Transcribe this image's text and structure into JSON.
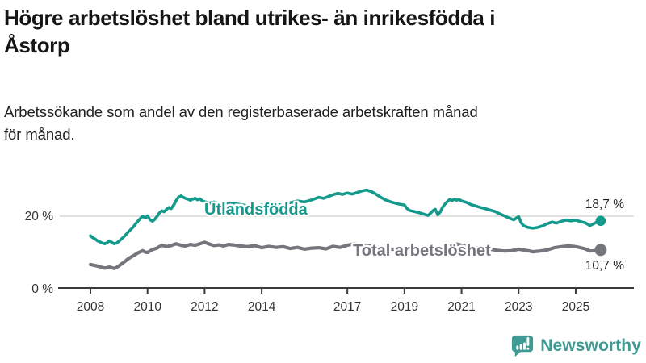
{
  "header": {
    "title_lines": [
      "Högre arbetslöshet bland utrikes- än inrikesfödda i",
      "Åstorp"
    ],
    "subtitle_lines": [
      "Arbetssökande som andel av den registerbaserade arbetskraften månad",
      "för månad."
    ]
  },
  "chart_data": {
    "type": "line",
    "title": "Högre arbetslöshet bland utrikes- än inrikesfödda i Åstorp",
    "subtitle": "Arbetssökande som andel av den registerbaserade arbetskraften månad för månad.",
    "unit": "%",
    "legend_position": "inline-labels",
    "x_axis": {
      "ticks": [
        {
          "label": "2008",
          "value": 2008
        },
        {
          "label": "2010",
          "value": 2010
        },
        {
          "label": "2012",
          "value": 2012
        },
        {
          "label": "2014",
          "value": 2014
        },
        {
          "label": "2017",
          "value": 2017
        },
        {
          "label": "2019",
          "value": 2019
        },
        {
          "label": "2021",
          "value": 2021
        },
        {
          "label": "2023",
          "value": 2023
        },
        {
          "label": "2025",
          "value": 2025
        }
      ],
      "range": [
        2007.6,
        2026.3
      ]
    },
    "y_axis": {
      "ticks": [
        {
          "label": "20 %",
          "value": 20
        },
        {
          "label": "0 %",
          "value": 0
        }
      ],
      "gridlines": [
        20
      ],
      "range": [
        0,
        31
      ]
    },
    "series": [
      {
        "name": "Utlandsfödda",
        "color": "#149a8c",
        "end_value": 18.7,
        "end_value_label": "18,7 %",
        "points": [
          [
            2008.0,
            14.6
          ],
          [
            2008.08,
            14.1
          ],
          [
            2008.17,
            13.7
          ],
          [
            2008.25,
            13.2
          ],
          [
            2008.33,
            12.9
          ],
          [
            2008.42,
            12.6
          ],
          [
            2008.5,
            12.4
          ],
          [
            2008.58,
            12.7
          ],
          [
            2008.67,
            13.2
          ],
          [
            2008.75,
            12.8
          ],
          [
            2008.83,
            12.4
          ],
          [
            2008.92,
            12.6
          ],
          [
            2009.0,
            13.1
          ],
          [
            2009.17,
            14.3
          ],
          [
            2009.33,
            15.7
          ],
          [
            2009.5,
            17.0
          ],
          [
            2009.58,
            17.9
          ],
          [
            2009.67,
            18.7
          ],
          [
            2009.75,
            19.4
          ],
          [
            2009.83,
            20.0
          ],
          [
            2009.92,
            19.5
          ],
          [
            2010.0,
            20.1
          ],
          [
            2010.08,
            19.1
          ],
          [
            2010.17,
            18.6
          ],
          [
            2010.25,
            19.1
          ],
          [
            2010.33,
            19.9
          ],
          [
            2010.42,
            20.9
          ],
          [
            2010.5,
            21.5
          ],
          [
            2010.58,
            21.2
          ],
          [
            2010.67,
            21.9
          ],
          [
            2010.75,
            22.4
          ],
          [
            2010.83,
            22.1
          ],
          [
            2010.92,
            23.1
          ],
          [
            2011.0,
            24.3
          ],
          [
            2011.08,
            25.2
          ],
          [
            2011.17,
            25.6
          ],
          [
            2011.25,
            25.2
          ],
          [
            2011.33,
            24.9
          ],
          [
            2011.42,
            24.7
          ],
          [
            2011.5,
            24.4
          ],
          [
            2011.58,
            24.7
          ],
          [
            2011.67,
            24.9
          ],
          [
            2011.75,
            24.5
          ],
          [
            2011.83,
            24.8
          ],
          [
            2011.92,
            24.2
          ],
          [
            2012.0,
            24.0
          ],
          [
            2012.17,
            23.6
          ],
          [
            2012.33,
            23.9
          ],
          [
            2012.5,
            23.4
          ],
          [
            2012.67,
            23.7
          ],
          [
            2012.83,
            23.3
          ],
          [
            2013.0,
            23.6
          ],
          [
            2013.25,
            23.2
          ],
          [
            2013.5,
            22.9
          ],
          [
            2013.75,
            22.7
          ],
          [
            2014.0,
            23.1
          ],
          [
            2014.25,
            22.8
          ],
          [
            2014.5,
            23.3
          ],
          [
            2014.75,
            23.0
          ],
          [
            2015.0,
            23.7
          ],
          [
            2015.25,
            24.2
          ],
          [
            2015.5,
            23.9
          ],
          [
            2015.75,
            24.5
          ],
          [
            2016.0,
            25.2
          ],
          [
            2016.17,
            24.9
          ],
          [
            2016.33,
            25.4
          ],
          [
            2016.5,
            25.9
          ],
          [
            2016.67,
            26.3
          ],
          [
            2016.83,
            26.0
          ],
          [
            2017.0,
            26.4
          ],
          [
            2017.17,
            26.1
          ],
          [
            2017.33,
            26.5
          ],
          [
            2017.5,
            26.9
          ],
          [
            2017.67,
            27.2
          ],
          [
            2017.83,
            26.8
          ],
          [
            2018.0,
            26.1
          ],
          [
            2018.17,
            25.2
          ],
          [
            2018.33,
            24.5
          ],
          [
            2018.5,
            24.0
          ],
          [
            2018.67,
            23.6
          ],
          [
            2018.83,
            23.3
          ],
          [
            2019.0,
            23.1
          ],
          [
            2019.08,
            22.2
          ],
          [
            2019.17,
            21.6
          ],
          [
            2019.33,
            21.3
          ],
          [
            2019.5,
            21.0
          ],
          [
            2019.67,
            20.6
          ],
          [
            2019.83,
            20.2
          ],
          [
            2020.0,
            21.5
          ],
          [
            2020.08,
            21.9
          ],
          [
            2020.17,
            20.4
          ],
          [
            2020.25,
            21.1
          ],
          [
            2020.33,
            22.4
          ],
          [
            2020.42,
            23.3
          ],
          [
            2020.5,
            24.0
          ],
          [
            2020.58,
            24.6
          ],
          [
            2020.67,
            24.3
          ],
          [
            2020.75,
            24.7
          ],
          [
            2020.83,
            24.4
          ],
          [
            2020.92,
            24.6
          ],
          [
            2021.0,
            24.2
          ],
          [
            2021.17,
            23.8
          ],
          [
            2021.33,
            23.2
          ],
          [
            2021.5,
            22.8
          ],
          [
            2021.67,
            22.4
          ],
          [
            2021.83,
            22.1
          ],
          [
            2022.0,
            21.7
          ],
          [
            2022.17,
            21.3
          ],
          [
            2022.33,
            20.7
          ],
          [
            2022.5,
            20.1
          ],
          [
            2022.67,
            19.5
          ],
          [
            2022.83,
            19.0
          ],
          [
            2023.0,
            19.9
          ],
          [
            2023.08,
            18.3
          ],
          [
            2023.17,
            17.4
          ],
          [
            2023.33,
            16.9
          ],
          [
            2023.5,
            16.7
          ],
          [
            2023.67,
            16.9
          ],
          [
            2023.83,
            17.3
          ],
          [
            2024.0,
            17.9
          ],
          [
            2024.17,
            18.4
          ],
          [
            2024.33,
            18.1
          ],
          [
            2024.5,
            18.6
          ],
          [
            2024.67,
            18.9
          ],
          [
            2024.83,
            18.7
          ],
          [
            2025.0,
            18.9
          ],
          [
            2025.17,
            18.5
          ],
          [
            2025.33,
            18.2
          ],
          [
            2025.5,
            17.4
          ],
          [
            2025.67,
            18.1
          ],
          [
            2025.79,
            18.7
          ]
        ]
      },
      {
        "name": "Total arbetslöshet",
        "color": "#75757d",
        "end_value": 10.7,
        "end_value_label": "10,7 %",
        "points": [
          [
            2008.0,
            6.7
          ],
          [
            2008.17,
            6.4
          ],
          [
            2008.33,
            6.1
          ],
          [
            2008.5,
            5.7
          ],
          [
            2008.67,
            6.0
          ],
          [
            2008.83,
            5.6
          ],
          [
            2008.92,
            5.9
          ],
          [
            2009.0,
            6.3
          ],
          [
            2009.17,
            7.3
          ],
          [
            2009.33,
            8.3
          ],
          [
            2009.5,
            9.1
          ],
          [
            2009.67,
            9.9
          ],
          [
            2009.83,
            10.5
          ],
          [
            2009.92,
            10.1
          ],
          [
            2010.0,
            10.0
          ],
          [
            2010.17,
            10.8
          ],
          [
            2010.33,
            11.2
          ],
          [
            2010.5,
            12.0
          ],
          [
            2010.67,
            11.6
          ],
          [
            2010.83,
            11.9
          ],
          [
            2011.0,
            12.4
          ],
          [
            2011.17,
            12.0
          ],
          [
            2011.33,
            11.8
          ],
          [
            2011.5,
            12.2
          ],
          [
            2011.67,
            12.0
          ],
          [
            2011.83,
            12.4
          ],
          [
            2012.0,
            12.8
          ],
          [
            2012.17,
            12.3
          ],
          [
            2012.33,
            11.9
          ],
          [
            2012.5,
            12.1
          ],
          [
            2012.67,
            11.8
          ],
          [
            2012.83,
            12.2
          ],
          [
            2013.0,
            12.1
          ],
          [
            2013.25,
            11.8
          ],
          [
            2013.5,
            11.6
          ],
          [
            2013.75,
            11.9
          ],
          [
            2014.0,
            11.3
          ],
          [
            2014.25,
            11.7
          ],
          [
            2014.5,
            11.4
          ],
          [
            2014.75,
            11.6
          ],
          [
            2015.0,
            11.1
          ],
          [
            2015.25,
            11.4
          ],
          [
            2015.5,
            10.9
          ],
          [
            2015.75,
            11.2
          ],
          [
            2016.0,
            11.3
          ],
          [
            2016.25,
            11.0
          ],
          [
            2016.5,
            11.7
          ],
          [
            2016.75,
            11.4
          ],
          [
            2017.0,
            12.0
          ],
          [
            2017.25,
            12.4
          ],
          [
            2017.5,
            12.1
          ],
          [
            2017.75,
            11.8
          ],
          [
            2018.0,
            11.6
          ],
          [
            2018.25,
            11.2
          ],
          [
            2018.5,
            10.9
          ],
          [
            2018.75,
            10.8
          ],
          [
            2019.0,
            10.7
          ],
          [
            2019.25,
            10.4
          ],
          [
            2019.5,
            10.2
          ],
          [
            2019.75,
            10.0
          ],
          [
            2020.0,
            10.1
          ],
          [
            2020.17,
            10.4
          ],
          [
            2020.33,
            11.2
          ],
          [
            2020.5,
            11.8
          ],
          [
            2020.67,
            12.0
          ],
          [
            2020.83,
            12.3
          ],
          [
            2021.0,
            12.0
          ],
          [
            2021.25,
            11.6
          ],
          [
            2021.5,
            11.3
          ],
          [
            2021.75,
            11.1
          ],
          [
            2022.0,
            10.9
          ],
          [
            2022.25,
            10.6
          ],
          [
            2022.5,
            10.4
          ],
          [
            2022.75,
            10.5
          ],
          [
            2023.0,
            10.9
          ],
          [
            2023.17,
            10.7
          ],
          [
            2023.33,
            10.5
          ],
          [
            2023.5,
            10.2
          ],
          [
            2023.75,
            10.4
          ],
          [
            2024.0,
            10.7
          ],
          [
            2024.25,
            11.3
          ],
          [
            2024.5,
            11.6
          ],
          [
            2024.75,
            11.8
          ],
          [
            2025.0,
            11.6
          ],
          [
            2025.17,
            11.3
          ],
          [
            2025.33,
            11.0
          ],
          [
            2025.5,
            10.4
          ],
          [
            2025.67,
            10.5
          ],
          [
            2025.79,
            10.7
          ]
        ]
      }
    ]
  },
  "footer": {
    "brand": "Newsworthy",
    "logo_icon": "bar-chart-speech-bubble-icon",
    "brand_color": "#3e9a92"
  }
}
